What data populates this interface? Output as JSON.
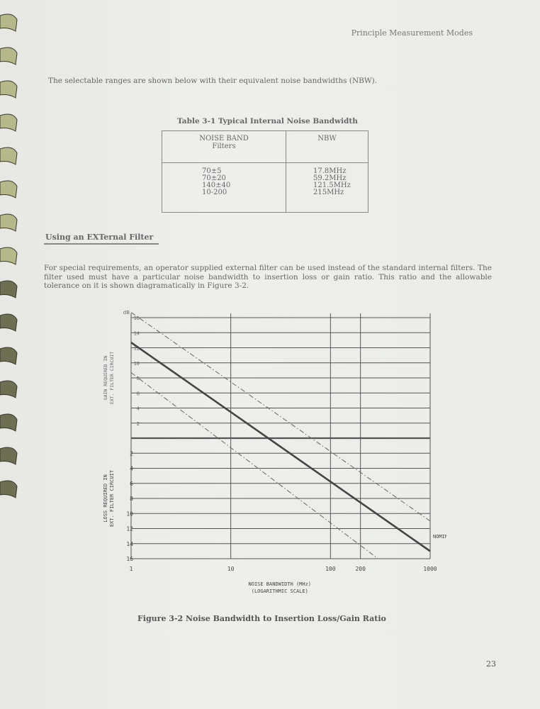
{
  "header": {
    "running_title": "Principle Measurement Modes"
  },
  "intro": "The selectable ranges are shown below with their equivalent noise bandwidths (NBW).",
  "table": {
    "caption": "Table 3-1 Typical Internal Noise Bandwidth",
    "col1_header_line1": "NOISE BAND",
    "col1_header_line2": "Filters",
    "col2_header": "NBW",
    "filters": [
      "70±5",
      "70±20",
      "140±40",
      "10-200"
    ],
    "nbw": [
      "17.8MHz",
      "59.2MHz",
      "121.5MHz",
      "215MHz"
    ]
  },
  "section": {
    "heading": "Using an EXTernal Filter"
  },
  "paragraph": "For special requirements, an operator supplied external filter can be used instead of the standard internal filters. The filter used must have a particular noise bandwidth to insertion loss or gain ratio. This ratio and the allowable tolerance on it is shown diagramatically in Figure 3-2.",
  "chart_data": {
    "type": "line",
    "x_scale": "log",
    "xlim": [
      1,
      1000
    ],
    "x_ticks": [
      "1",
      "10",
      "100",
      "200",
      "1000"
    ],
    "y_unit": "dB",
    "gain_ticks": [
      "16",
      "14",
      "12",
      "10",
      "8",
      "6",
      "4",
      "2"
    ],
    "loss_ticks": [
      "2",
      "4",
      "6",
      "8",
      "10",
      "12",
      "14",
      "16"
    ],
    "gain_label_line1": "GAIN REQUIRED IN",
    "gain_label_line2": "EXT. FILTER CIRCUIT",
    "loss_label_line1": "LOSS REQUIRED IN",
    "loss_label_line2": "EXT. FILTER CIRCUIT",
    "xlabel_line1": "NOISE BANDWIDTH (MHz)",
    "xlabel_line2": "(LOGARITHMIC SCALE)",
    "annotation": "NOMINAL",
    "series": [
      {
        "name": "NOMINAL",
        "style": "solid",
        "x": [
          1,
          1000
        ],
        "y": [
          12.7,
          -15
        ]
      },
      {
        "style": "dash-dot",
        "x": [
          1,
          1000
        ],
        "y": [
          16.7,
          -11
        ]
      },
      {
        "style": "dash-dot",
        "x": [
          1,
          300
        ],
        "y": [
          8.7,
          -16
        ]
      }
    ],
    "y_convention": "positive = gain, negative = loss"
  },
  "figure_caption": "Figure 3-2 Noise Bandwidth to Insertion Loss/Gain Ratio",
  "page_number": "23"
}
